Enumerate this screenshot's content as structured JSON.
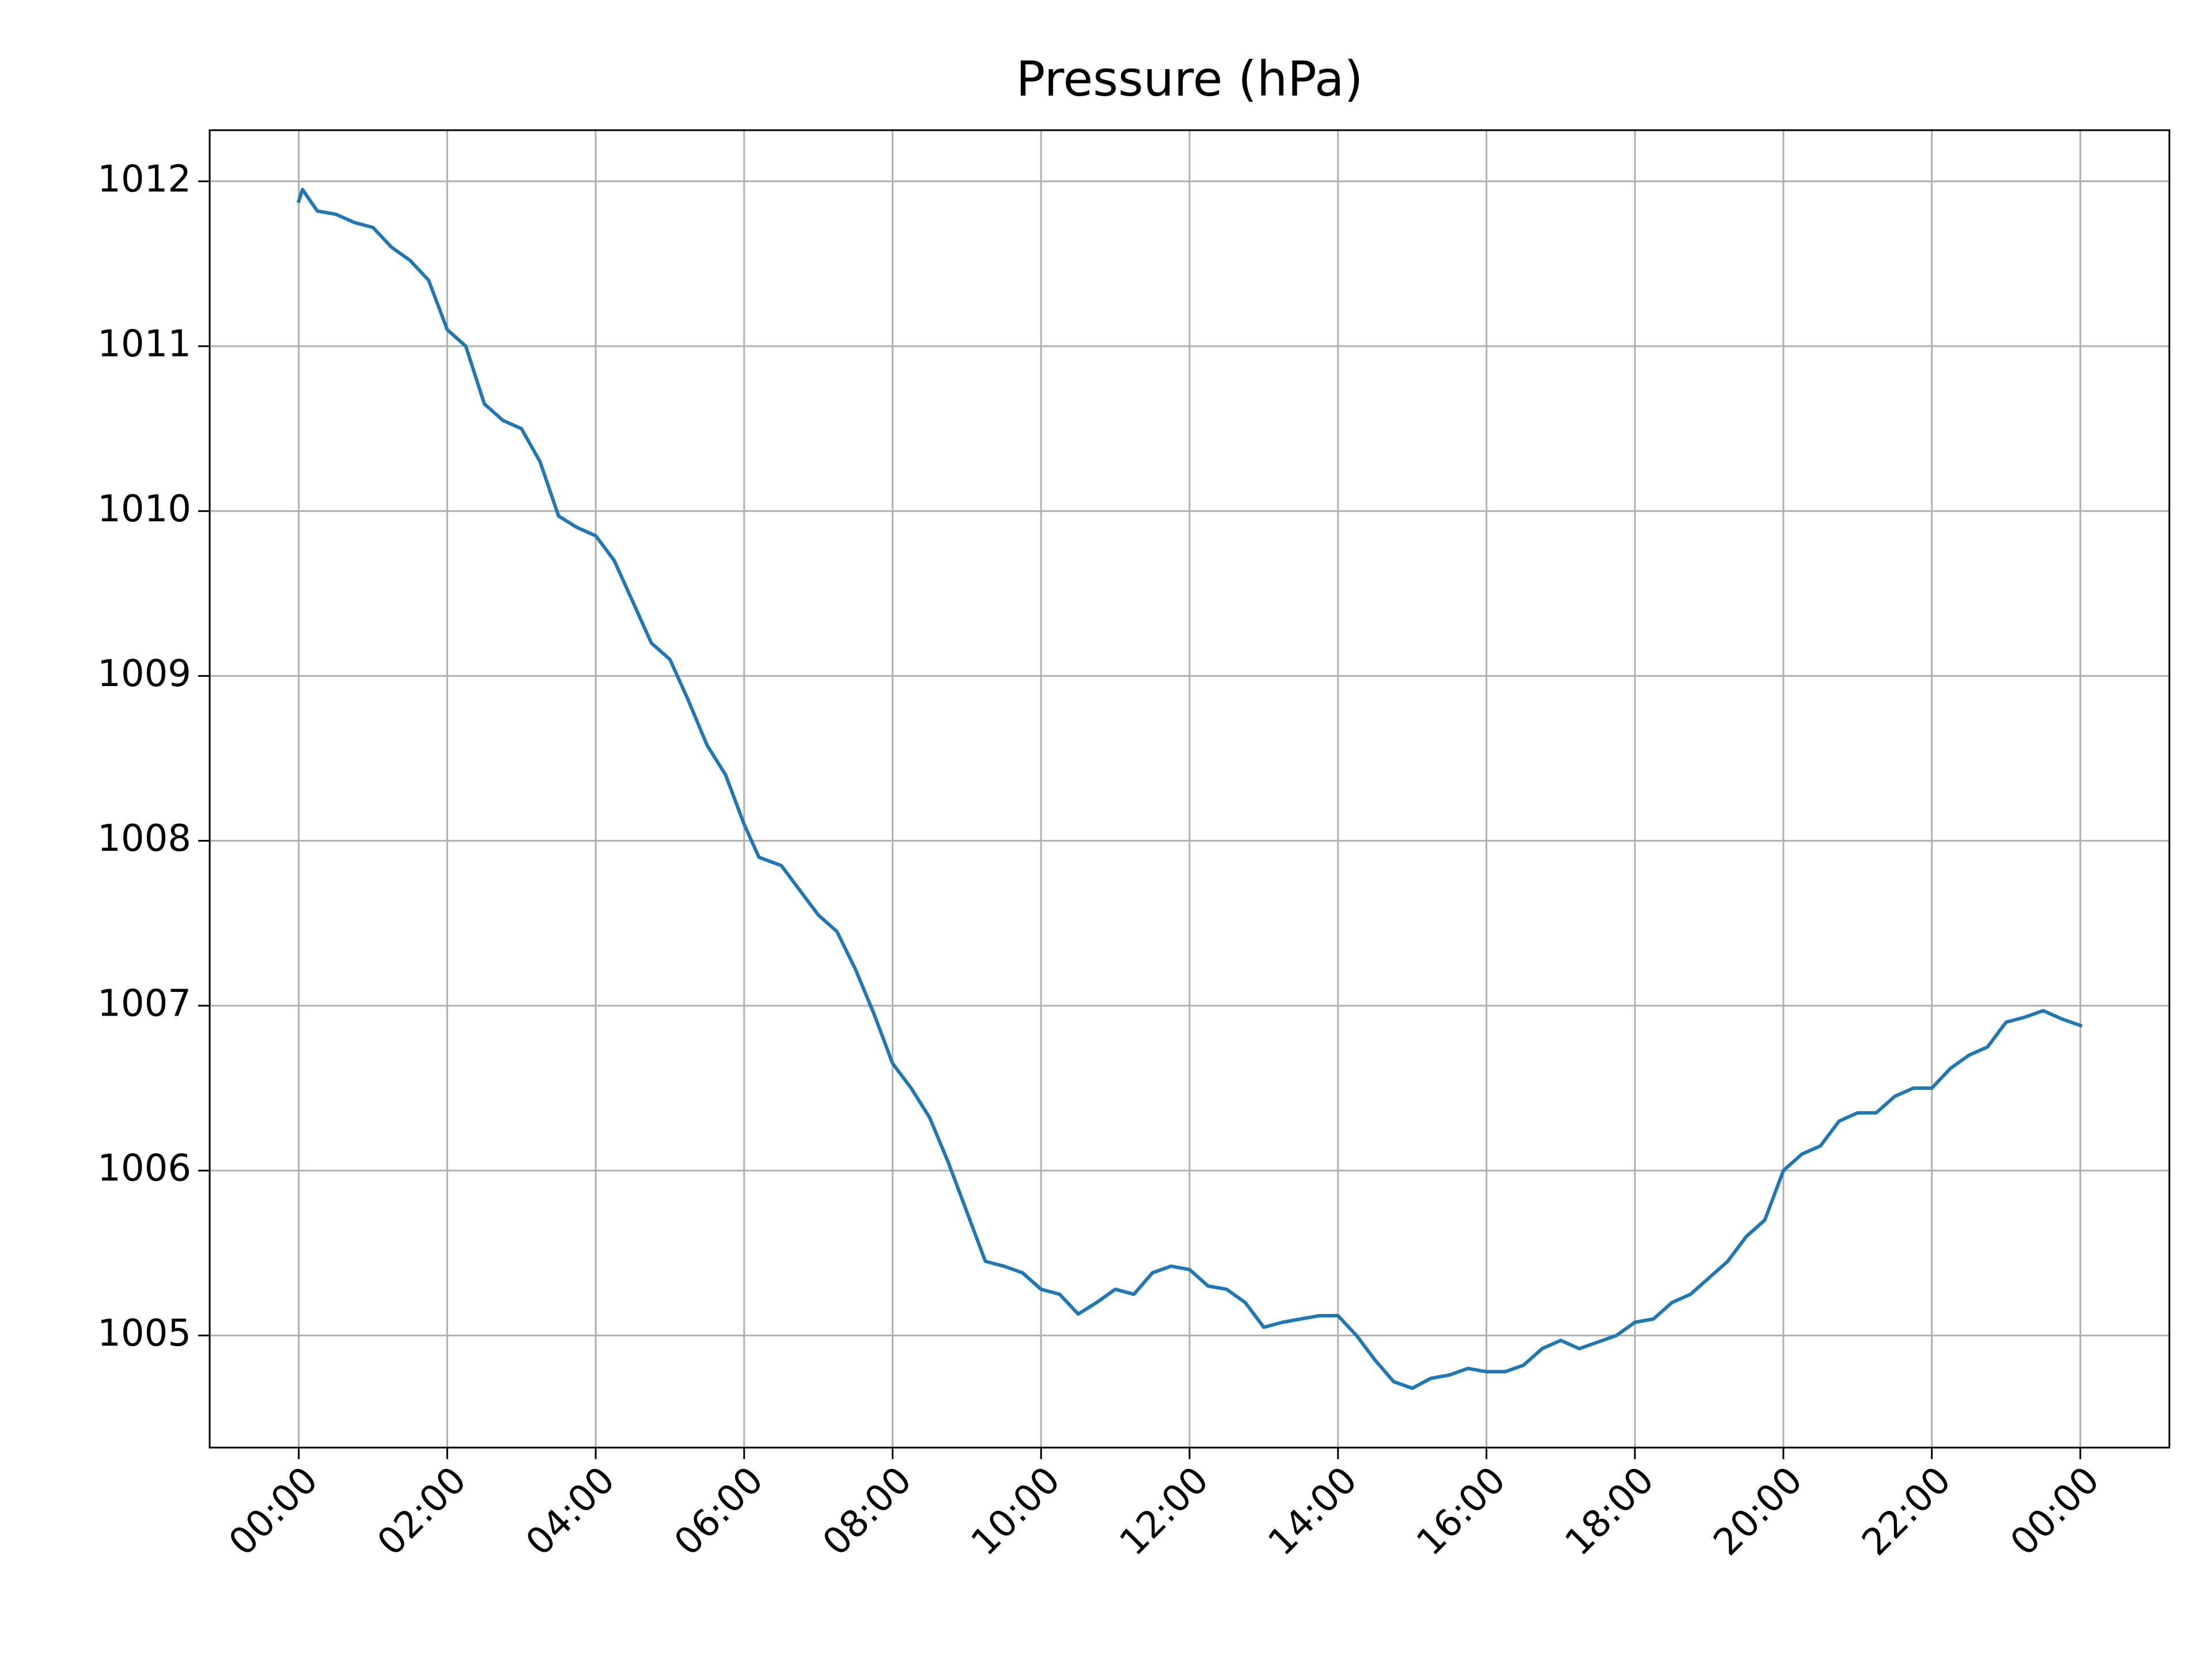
{
  "chart_data": {
    "type": "line",
    "title": "Pressure (hPa)",
    "series": [
      {
        "name": "Pressure",
        "color": "#1f77b4",
        "x": [
          0,
          0.05,
          0.25,
          0.5,
          0.75,
          1.0,
          1.25,
          1.5,
          1.75,
          2.0,
          2.25,
          2.5,
          2.75,
          3.0,
          3.25,
          3.5,
          3.75,
          4.0,
          4.25,
          4.5,
          4.75,
          5.0,
          5.25,
          5.5,
          5.75,
          6.0,
          6.2,
          6.5,
          6.75,
          7.0,
          7.25,
          7.5,
          7.75,
          8.0,
          8.25,
          8.5,
          8.75,
          9.0,
          9.25,
          9.5,
          9.75,
          10.0,
          10.25,
          10.5,
          10.75,
          11.0,
          11.25,
          11.5,
          11.75,
          12.0,
          12.25,
          12.5,
          12.75,
          13.0,
          13.25,
          13.5,
          13.75,
          14.0,
          14.25,
          14.5,
          14.75,
          15.0,
          15.25,
          15.5,
          15.75,
          16.0,
          16.25,
          16.5,
          16.75,
          17.0,
          17.25,
          17.5,
          17.75,
          18.0,
          18.25,
          18.5,
          18.75,
          19.0,
          19.25,
          19.5,
          19.75,
          20.0,
          20.25,
          20.5,
          20.75,
          21.0,
          21.25,
          21.5,
          21.75,
          22.0,
          22.25,
          22.5,
          22.75,
          23.0,
          23.25,
          23.5,
          23.75,
          24.0
        ],
        "values": [
          1011.88,
          1011.95,
          1011.82,
          1011.8,
          1011.75,
          1011.72,
          1011.6,
          1011.52,
          1011.4,
          1011.1,
          1011.0,
          1010.65,
          1010.55,
          1010.5,
          1010.3,
          1009.97,
          1009.9,
          1009.85,
          1009.7,
          1009.45,
          1009.2,
          1009.1,
          1008.85,
          1008.58,
          1008.4,
          1008.1,
          1007.9,
          1007.85,
          1007.7,
          1007.55,
          1007.45,
          1007.22,
          1006.95,
          1006.65,
          1006.5,
          1006.32,
          1006.05,
          1005.75,
          1005.45,
          1005.42,
          1005.38,
          1005.28,
          1005.25,
          1005.13,
          1005.2,
          1005.28,
          1005.25,
          1005.38,
          1005.42,
          1005.4,
          1005.3,
          1005.28,
          1005.2,
          1005.05,
          1005.08,
          1005.1,
          1005.12,
          1005.12,
          1005.0,
          1004.85,
          1004.72,
          1004.68,
          1004.74,
          1004.76,
          1004.8,
          1004.78,
          1004.78,
          1004.82,
          1004.92,
          1004.97,
          1004.92,
          1004.96,
          1005.0,
          1005.08,
          1005.1,
          1005.2,
          1005.25,
          1005.35,
          1005.45,
          1005.6,
          1005.7,
          1006.0,
          1006.1,
          1006.15,
          1006.3,
          1006.35,
          1006.35,
          1006.45,
          1006.5,
          1006.5,
          1006.62,
          1006.7,
          1006.75,
          1006.9,
          1006.93,
          1006.97,
          1006.92,
          1006.88
        ]
      }
    ],
    "xlim": [
      -1.2,
      25.2
    ],
    "xticks": [
      {
        "value": 0,
        "label": "00:00"
      },
      {
        "value": 2,
        "label": "02:00"
      },
      {
        "value": 4,
        "label": "04:00"
      },
      {
        "value": 6,
        "label": "06:00"
      },
      {
        "value": 8,
        "label": "08:00"
      },
      {
        "value": 10,
        "label": "10:00"
      },
      {
        "value": 12,
        "label": "12:00"
      },
      {
        "value": 14,
        "label": "14:00"
      },
      {
        "value": 16,
        "label": "16:00"
      },
      {
        "value": 18,
        "label": "18:00"
      },
      {
        "value": 20,
        "label": "20:00"
      },
      {
        "value": 22,
        "label": "22:00"
      },
      {
        "value": 24,
        "label": "00:00"
      }
    ],
    "ylim": [
      1004.32,
      1012.31
    ],
    "yticks": [
      1005,
      1006,
      1007,
      1008,
      1009,
      1010,
      1011,
      1012
    ],
    "grid": true
  }
}
